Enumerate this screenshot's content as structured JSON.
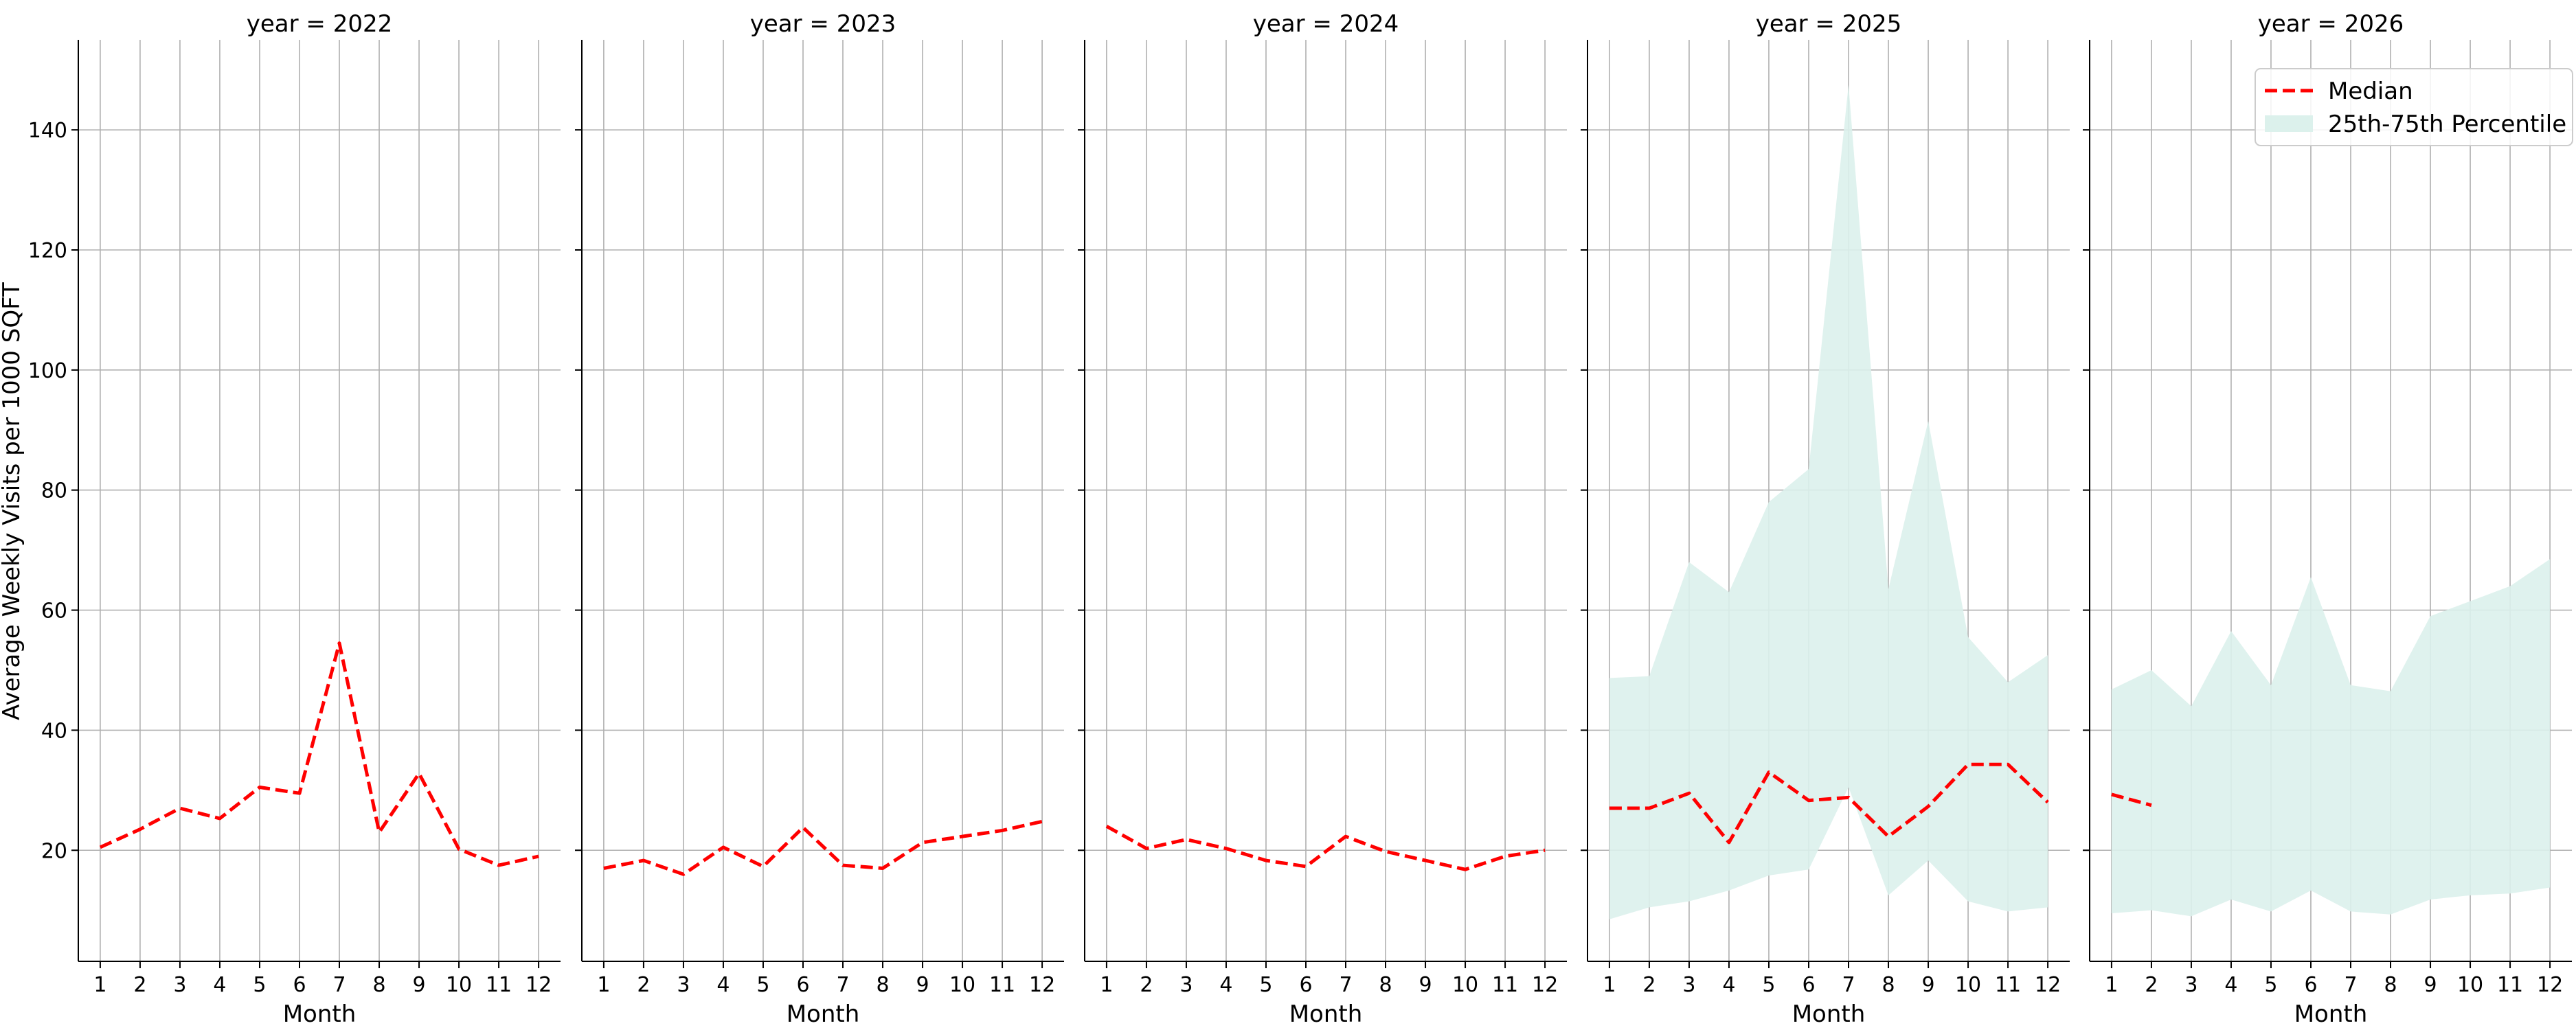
{
  "ylabel": "Average Weekly Visits per 1000 SQFT",
  "legend": {
    "placement": "top-right",
    "median_label": "Median",
    "band_label": "25th-75th Percentile"
  },
  "colors": {
    "median": "#ff0000",
    "band": "#dcf1ec",
    "grid": "#b0b0b0"
  },
  "chart_data": {
    "type": "line",
    "ylim": [
      1.5,
      155
    ],
    "yticks": [
      20,
      40,
      60,
      80,
      100,
      120,
      140
    ],
    "xlim": [
      0.45,
      12.55
    ],
    "xticks": [
      1,
      2,
      3,
      4,
      5,
      6,
      7,
      8,
      9,
      10,
      11,
      12
    ],
    "xlabel": "Month",
    "grid": true,
    "panels": [
      {
        "title": "year = 2022",
        "median": {
          "x": [
            1,
            2,
            3,
            4,
            5,
            6,
            7,
            8,
            9,
            10,
            11,
            12
          ],
          "y": [
            20.5,
            23.5,
            27,
            25.3,
            30.5,
            29.5,
            54.5,
            23,
            32.8,
            20.2,
            17.5,
            19
          ]
        },
        "band": null
      },
      {
        "title": "year = 2023",
        "median": {
          "x": [
            1,
            2,
            3,
            4,
            5,
            6,
            7,
            8,
            9,
            10,
            11,
            12
          ],
          "y": [
            17,
            18.3,
            16,
            20.5,
            17.3,
            23.8,
            17.5,
            17,
            21.3,
            22.3,
            23.3,
            24.8
          ]
        },
        "band": null
      },
      {
        "title": "year = 2024",
        "median": {
          "x": [
            1,
            2,
            3,
            4,
            5,
            6,
            7,
            8,
            9,
            10,
            11,
            12
          ],
          "y": [
            24,
            20.3,
            21.8,
            20.3,
            18.3,
            17.3,
            22.3,
            19.8,
            18.3,
            16.8,
            19,
            20
          ]
        },
        "band": null
      },
      {
        "title": "year = 2025",
        "median": {
          "x": [
            1,
            2,
            3,
            4,
            5,
            6,
            7,
            8,
            9,
            10,
            11,
            12
          ],
          "y": [
            27,
            27,
            29.5,
            21.3,
            33,
            28.3,
            28.8,
            22.3,
            27.3,
            34.3,
            34.3,
            28
          ]
        },
        "band": {
          "x": [
            1,
            2,
            3,
            4,
            5,
            6,
            7,
            8,
            9,
            10,
            11,
            12
          ],
          "low": [
            8.5,
            10.5,
            11.5,
            13.3,
            15.8,
            16.8,
            30.5,
            12.5,
            18.3,
            11.5,
            9.8,
            10.5
          ],
          "high": [
            48.7,
            49,
            68,
            63,
            78,
            83.5,
            147.5,
            63.5,
            91.5,
            55.5,
            48,
            52.5
          ]
        }
      },
      {
        "title": "year = 2026",
        "median": {
          "x": [
            1,
            2
          ],
          "y": [
            29.3,
            27.5
          ]
        },
        "band": {
          "x": [
            1,
            2,
            3,
            4,
            5,
            6,
            7,
            8,
            9,
            10,
            11,
            12
          ],
          "low": [
            9.5,
            10,
            9,
            11.8,
            9.8,
            13.3,
            9.8,
            9.3,
            11.8,
            12.5,
            12.8,
            13.8
          ],
          "high": [
            46.8,
            50,
            44,
            56.5,
            47.5,
            65.5,
            47.5,
            46.5,
            59,
            61.5,
            64,
            68.5
          ]
        }
      }
    ]
  }
}
